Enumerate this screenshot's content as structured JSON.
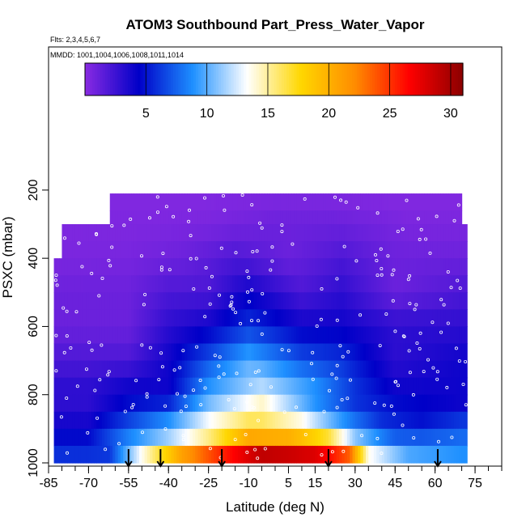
{
  "chart_data": {
    "type": "heatmap",
    "title": "ATOM3 Southbound Part_Press_Water_Vapor",
    "annotations": [
      "Flts: 2,3,4,5,6,7",
      "MMDD: 1001,1004,1006,1008,1011,1014"
    ],
    "xlabel": "Latitude (deg N)",
    "ylabel": "PSXC (mbar)",
    "xlim": [
      -85,
      85
    ],
    "ylim": [
      1000,
      0
    ],
    "x_ticks": [
      -85,
      -70,
      -55,
      -40,
      -25,
      -10,
      5,
      15,
      30,
      45,
      60,
      75
    ],
    "x_tick_labels": [
      "-85",
      "-70",
      "-55",
      "-40",
      "-25",
      "-10",
      "5",
      "15",
      "30",
      "45",
      "60",
      "75"
    ],
    "y_ticks": [
      200,
      400,
      600,
      800,
      1000
    ],
    "y_tick_labels": [
      "200",
      "400",
      "600",
      "800",
      "1000"
    ],
    "colorbar": {
      "range": [
        0,
        31
      ],
      "ticks": [
        5,
        10,
        15,
        20,
        25,
        30
      ],
      "tick_labels": [
        "5",
        "10",
        "15",
        "20",
        "25",
        "30"
      ],
      "colors": [
        "#8a2be2",
        "#0000c8",
        "#1e90ff",
        "#ffffff",
        "#ffd700",
        "#ff8c00",
        "#ff0000",
        "#8b0000"
      ]
    },
    "arrow_latitudes": [
      -55,
      -43,
      -20,
      20,
      61
    ],
    "pressure_levels": [
      210,
      260,
      300,
      350,
      400,
      450,
      500,
      550,
      600,
      650,
      700,
      750,
      800,
      850,
      900,
      950,
      1000
    ],
    "latitude_coverage": [
      {
        "x0": -62,
        "x1": 70,
        "top": 210
      },
      {
        "x0": -73,
        "x1": 70,
        "top": 265
      },
      {
        "x0": -80,
        "x1": 72,
        "top": 300
      },
      {
        "x0": -83,
        "x1": 72,
        "top": 400
      }
    ],
    "series": [
      {
        "pressure": 980,
        "values": [
          [
            -62,
            6
          ],
          [
            -50,
            14
          ],
          [
            -35,
            22
          ],
          [
            -22,
            26
          ],
          [
            -5,
            30
          ],
          [
            15,
            29
          ],
          [
            28,
            25
          ],
          [
            35,
            14
          ],
          [
            50,
            10
          ],
          [
            70,
            9
          ]
        ]
      },
      {
        "pressure": 940,
        "values": [
          [
            -70,
            5
          ],
          [
            -55,
            9
          ],
          [
            -40,
            12
          ],
          [
            -25,
            16
          ],
          [
            -10,
            22
          ],
          [
            5,
            22
          ],
          [
            20,
            19
          ],
          [
            30,
            12
          ],
          [
            45,
            8
          ],
          [
            70,
            8
          ]
        ]
      },
      {
        "pressure": 890,
        "values": [
          [
            -70,
            4
          ],
          [
            -55,
            7
          ],
          [
            -40,
            10
          ],
          [
            -25,
            14
          ],
          [
            -10,
            17
          ],
          [
            10,
            15
          ],
          [
            25,
            10
          ],
          [
            40,
            6
          ],
          [
            55,
            5
          ],
          [
            70,
            7
          ]
        ]
      },
      {
        "pressure": 840,
        "values": [
          [
            -70,
            3
          ],
          [
            -55,
            5
          ],
          [
            -40,
            6
          ],
          [
            -25,
            11
          ],
          [
            -5,
            15
          ],
          [
            15,
            9
          ],
          [
            30,
            6
          ],
          [
            45,
            5
          ],
          [
            70,
            4
          ]
        ]
      },
      {
        "pressure": 780,
        "values": [
          [
            -70,
            3
          ],
          [
            -55,
            4
          ],
          [
            -40,
            4
          ],
          [
            -25,
            9
          ],
          [
            -5,
            12
          ],
          [
            15,
            9
          ],
          [
            30,
            6
          ],
          [
            45,
            4
          ],
          [
            70,
            4
          ]
        ]
      },
      {
        "pressure": 700,
        "values": [
          [
            -75,
            2
          ],
          [
            -55,
            2
          ],
          [
            -40,
            4
          ],
          [
            -25,
            7
          ],
          [
            -10,
            10
          ],
          [
            10,
            7
          ],
          [
            25,
            6
          ],
          [
            45,
            3
          ],
          [
            70,
            4
          ]
        ]
      },
      {
        "pressure": 600,
        "values": [
          [
            -80,
            1
          ],
          [
            -55,
            1
          ],
          [
            -40,
            3
          ],
          [
            -25,
            4
          ],
          [
            -10,
            6
          ],
          [
            10,
            4
          ],
          [
            25,
            4
          ],
          [
            45,
            3
          ],
          [
            70,
            3
          ]
        ]
      },
      {
        "pressure": 500,
        "values": [
          [
            -80,
            1
          ],
          [
            -55,
            1
          ],
          [
            -40,
            2
          ],
          [
            -25,
            2
          ],
          [
            -10,
            4
          ],
          [
            10,
            2
          ],
          [
            25,
            3
          ],
          [
            45,
            1
          ],
          [
            70,
            2
          ]
        ]
      },
      {
        "pressure": 400,
        "values": [
          [
            -80,
            0.5
          ],
          [
            -55,
            0.6
          ],
          [
            -35,
            1
          ],
          [
            -15,
            2
          ],
          [
            5,
            1
          ],
          [
            25,
            2
          ],
          [
            45,
            1
          ],
          [
            70,
            1
          ]
        ]
      },
      {
        "pressure": 300,
        "values": [
          [
            -73,
            0.4
          ],
          [
            -50,
            0.4
          ],
          [
            -25,
            0.5
          ],
          [
            0,
            1
          ],
          [
            25,
            1
          ],
          [
            50,
            0.5
          ],
          [
            70,
            0.5
          ]
        ]
      },
      {
        "pressure": 230,
        "values": [
          [
            -62,
            0.3
          ],
          [
            -30,
            0.3
          ],
          [
            0,
            0.5
          ],
          [
            20,
            0.5
          ],
          [
            45,
            0.3
          ],
          [
            70,
            0.3
          ]
        ]
      }
    ]
  }
}
